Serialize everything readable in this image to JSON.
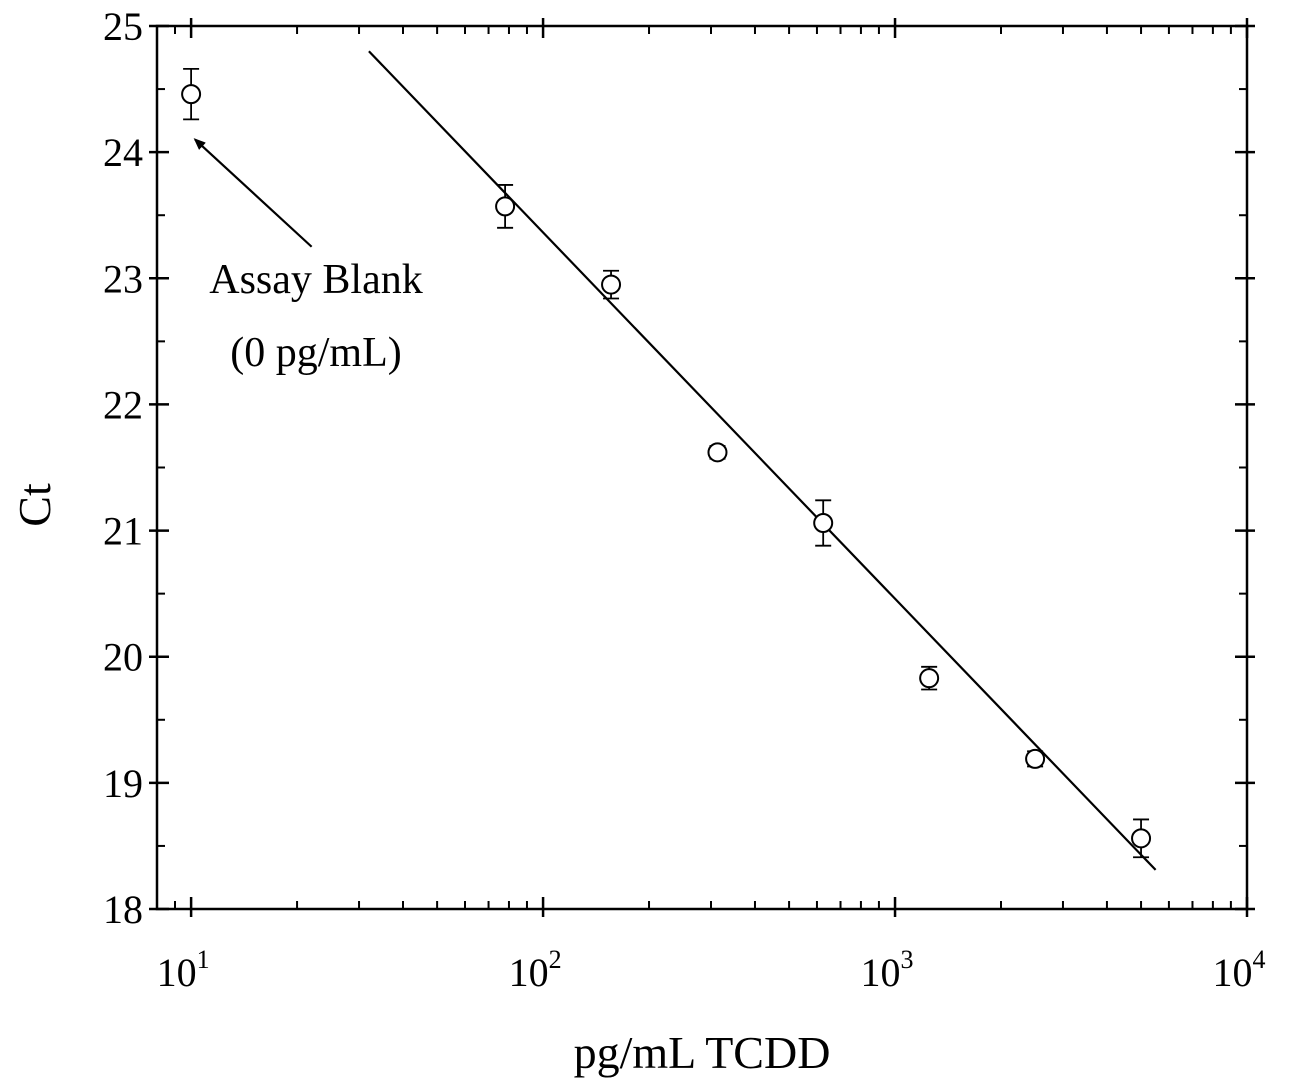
{
  "chart_data": {
    "type": "scatter",
    "xscale": "log",
    "xlim": [
      8,
      10000
    ],
    "ylim": [
      18,
      25
    ],
    "xlabel": "pg/mL TCDD",
    "ylabel": "Ct",
    "x_ticks": [
      {
        "value": 10,
        "base": "10",
        "exp": "1"
      },
      {
        "value": 100,
        "base": "10",
        "exp": "2"
      },
      {
        "value": 1000,
        "base": "10",
        "exp": "3"
      },
      {
        "value": 10000,
        "base": "10",
        "exp": "4"
      }
    ],
    "y_ticks": [
      "18",
      "19",
      "20",
      "21",
      "22",
      "23",
      "24",
      "25"
    ],
    "series": [
      {
        "points": [
          {
            "x": 10,
            "y": 24.46,
            "err": 0.2
          },
          {
            "x": 78,
            "y": 23.57,
            "err": 0.17
          },
          {
            "x": 156,
            "y": 22.95,
            "err": 0.11
          },
          {
            "x": 313,
            "y": 21.62,
            "err": 0.05
          },
          {
            "x": 625,
            "y": 21.06,
            "err": 0.18
          },
          {
            "x": 1250,
            "y": 19.83,
            "err": 0.09
          },
          {
            "x": 2500,
            "y": 19.19,
            "err": 0.06
          },
          {
            "x": 5000,
            "y": 18.56,
            "err": 0.15
          }
        ]
      }
    ],
    "fit_line": {
      "x": [
        32,
        5500
      ],
      "y": [
        24.8,
        18.31
      ]
    },
    "annotation": {
      "lines": [
        "Assay Blank",
        "(0 pg/mL)"
      ],
      "target": {
        "x": 10,
        "y": 24.1
      },
      "from": {
        "x": 22,
        "y": 23.25
      }
    },
    "grid": false,
    "legend": "none"
  }
}
